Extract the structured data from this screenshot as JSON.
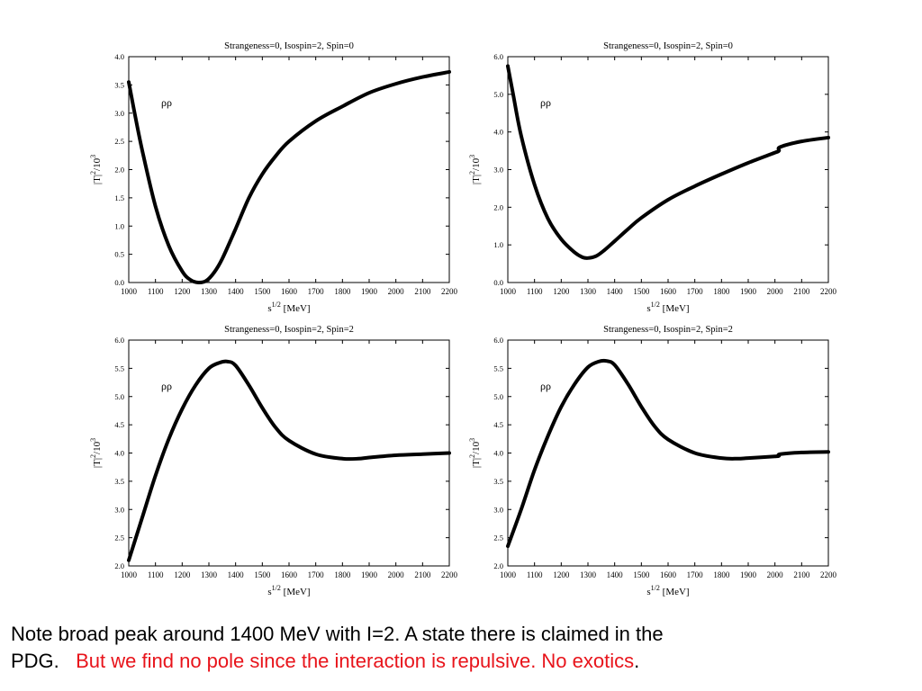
{
  "chart_data": [
    {
      "type": "line",
      "title": "Strangeness=0, Isospin=2, Spin=0",
      "xlabel": "s^{1/2} [MeV]",
      "ylabel": "|T|^2/10^3",
      "annotation": "ρρ",
      "xlim": [
        1000,
        2200
      ],
      "ylim": [
        0.0,
        4.0
      ],
      "xticks": [
        1000,
        1100,
        1200,
        1300,
        1400,
        1500,
        1600,
        1700,
        1800,
        1900,
        2000,
        2100,
        2200
      ],
      "yticks": [
        "0.0",
        "0.5",
        "1.0",
        "1.5",
        "2.0",
        "2.5",
        "3.0",
        "3.5",
        "4.0"
      ],
      "grid": false,
      "series": [
        {
          "x": [
            1000,
            1020,
            1050,
            1100,
            1150,
            1200,
            1230,
            1260,
            1290,
            1320,
            1350,
            1400,
            1450,
            1500,
            1550,
            1600,
            1700,
            1800,
            1900,
            2000,
            2100,
            2200
          ],
          "y": [
            3.55,
            3.05,
            2.35,
            1.35,
            0.65,
            0.2,
            0.05,
            0.0,
            0.03,
            0.18,
            0.42,
            0.95,
            1.5,
            1.92,
            2.24,
            2.5,
            2.86,
            3.12,
            3.36,
            3.52,
            3.64,
            3.73
          ]
        }
      ]
    },
    {
      "type": "line",
      "title": "Strangeness=0, Isospin=2, Spin=0",
      "xlabel": "s^{1/2} [MeV]",
      "ylabel": "|T|^2/10^3",
      "annotation": "ρρ",
      "xlim": [
        1000,
        2200
      ],
      "ylim": [
        0.0,
        6.0
      ],
      "xticks": [
        1000,
        1100,
        1200,
        1300,
        1400,
        1500,
        1600,
        1700,
        1800,
        1900,
        2000,
        2100,
        2200
      ],
      "yticks": [
        "0.0",
        "1.0",
        "2.0",
        "3.0",
        "4.0",
        "5.0",
        "6.0"
      ],
      "grid": false,
      "series": [
        {
          "x": [
            1000,
            1020,
            1050,
            1100,
            1150,
            1200,
            1250,
            1280,
            1300,
            1330,
            1360,
            1400,
            1450,
            1500,
            1600,
            1700,
            1800,
            1900,
            2000,
            2015,
            2020,
            2100,
            2200
          ],
          "y": [
            5.75,
            5.0,
            3.9,
            2.6,
            1.7,
            1.15,
            0.8,
            0.67,
            0.65,
            0.7,
            0.85,
            1.1,
            1.42,
            1.72,
            2.2,
            2.56,
            2.88,
            3.18,
            3.45,
            3.5,
            3.6,
            3.75,
            3.85
          ]
        }
      ]
    },
    {
      "type": "line",
      "title": "Strangeness=0, Isospin=2, Spin=2",
      "xlabel": "s^{1/2} [MeV]",
      "ylabel": "|T|^2/10^3",
      "annotation": "ρρ",
      "xlim": [
        1000,
        2200
      ],
      "ylim": [
        2.0,
        6.0
      ],
      "xticks": [
        1000,
        1100,
        1200,
        1300,
        1400,
        1500,
        1600,
        1700,
        1800,
        1900,
        2000,
        2100,
        2200
      ],
      "yticks": [
        "2.0",
        "2.5",
        "3.0",
        "3.5",
        "4.0",
        "4.5",
        "5.0",
        "5.5",
        "6.0"
      ],
      "grid": false,
      "series": [
        {
          "x": [
            1000,
            1050,
            1100,
            1150,
            1200,
            1250,
            1300,
            1340,
            1370,
            1400,
            1450,
            1500,
            1550,
            1600,
            1700,
            1800,
            1860,
            1900,
            2000,
            2100,
            2200
          ],
          "y": [
            2.1,
            2.85,
            3.6,
            4.25,
            4.78,
            5.2,
            5.5,
            5.6,
            5.62,
            5.55,
            5.2,
            4.8,
            4.45,
            4.22,
            3.98,
            3.9,
            3.9,
            3.92,
            3.96,
            3.98,
            4.0
          ]
        }
      ]
    },
    {
      "type": "line",
      "title": "Strangeness=0, Isospin=2, Spin=2",
      "xlabel": "s^{1/2} [MeV]",
      "ylabel": "|T|^2/10^3",
      "annotation": "ρρ",
      "xlim": [
        1000,
        2200
      ],
      "ylim": [
        2.0,
        6.0
      ],
      "xticks": [
        1000,
        1100,
        1200,
        1300,
        1400,
        1500,
        1600,
        1700,
        1800,
        1900,
        2000,
        2100,
        2200
      ],
      "yticks": [
        "2.0",
        "2.5",
        "3.0",
        "3.5",
        "4.0",
        "4.5",
        "5.0",
        "5.5",
        "6.0"
      ],
      "grid": false,
      "series": [
        {
          "x": [
            1000,
            1050,
            1100,
            1150,
            1200,
            1250,
            1300,
            1340,
            1370,
            1400,
            1450,
            1500,
            1550,
            1600,
            1700,
            1800,
            1860,
            1900,
            2000,
            2015,
            2020,
            2100,
            2200
          ],
          "y": [
            2.35,
            3.0,
            3.7,
            4.3,
            4.82,
            5.22,
            5.52,
            5.62,
            5.63,
            5.56,
            5.22,
            4.82,
            4.47,
            4.24,
            4.0,
            3.91,
            3.9,
            3.91,
            3.94,
            3.95,
            3.98,
            4.01,
            4.02
          ]
        }
      ]
    }
  ],
  "caption": {
    "line1": "Note broad  peak around 1400 MeV with I=2.  A state there is claimed in the",
    "line2_black": "PDG.   ",
    "line2_red": "But we find no pole since the interaction is repulsive. No exotics",
    "line2_end": "."
  }
}
